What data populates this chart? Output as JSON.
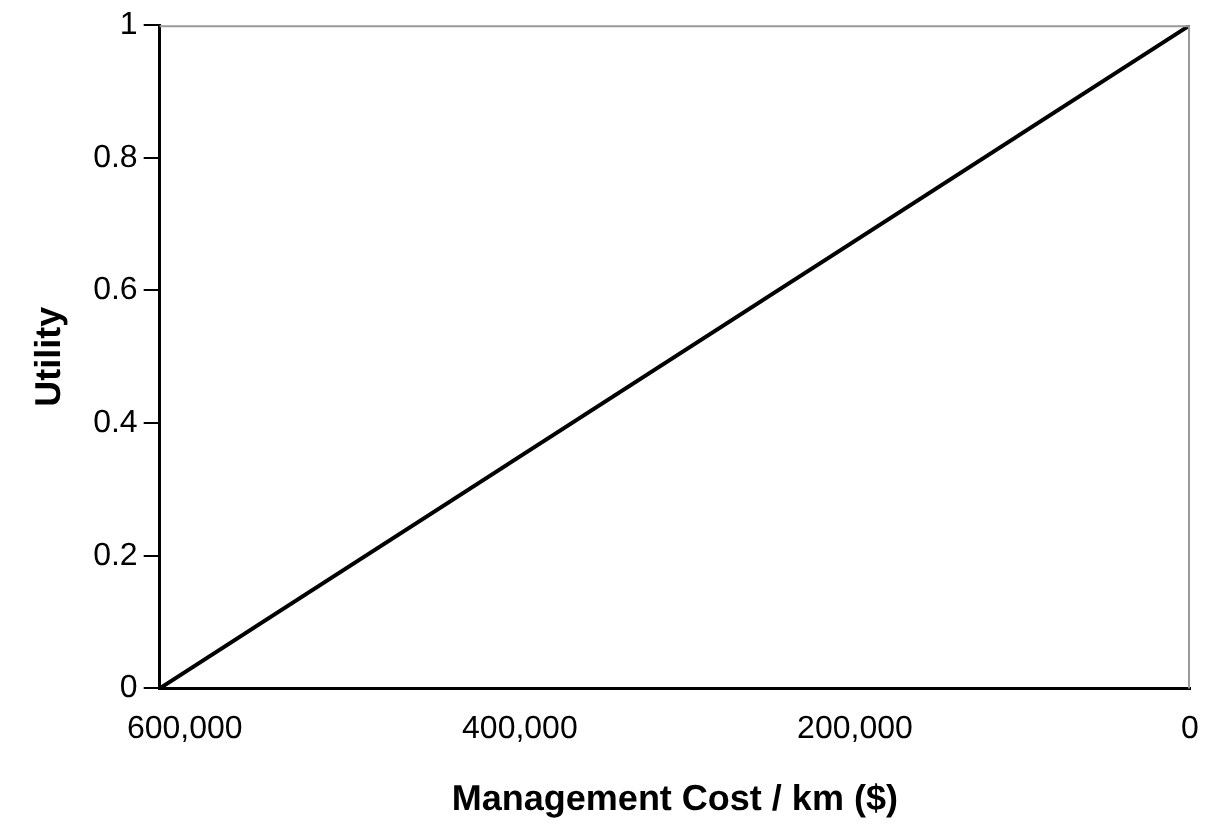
{
  "chart_data": {
    "type": "line",
    "xlabel": "Management Cost / km ($)",
    "ylabel": "Utility",
    "series": [
      {
        "color": "#000000",
        "x": [
          615000,
          0
        ],
        "values": [
          0,
          1
        ]
      }
    ],
    "xlim": [
      615000,
      0
    ],
    "xticks": [
      {
        "value": 600000,
        "label": "600,000"
      },
      {
        "value": 400000,
        "label": "400,000"
      },
      {
        "value": 200000,
        "label": "200,000"
      },
      0
    ],
    "ylim": [
      0,
      1
    ],
    "yticks": [
      0,
      0.2,
      0.4,
      0.6,
      0.8,
      1
    ],
    "grid": false,
    "legend": false,
    "marker": "none",
    "line_style": "solid"
  }
}
